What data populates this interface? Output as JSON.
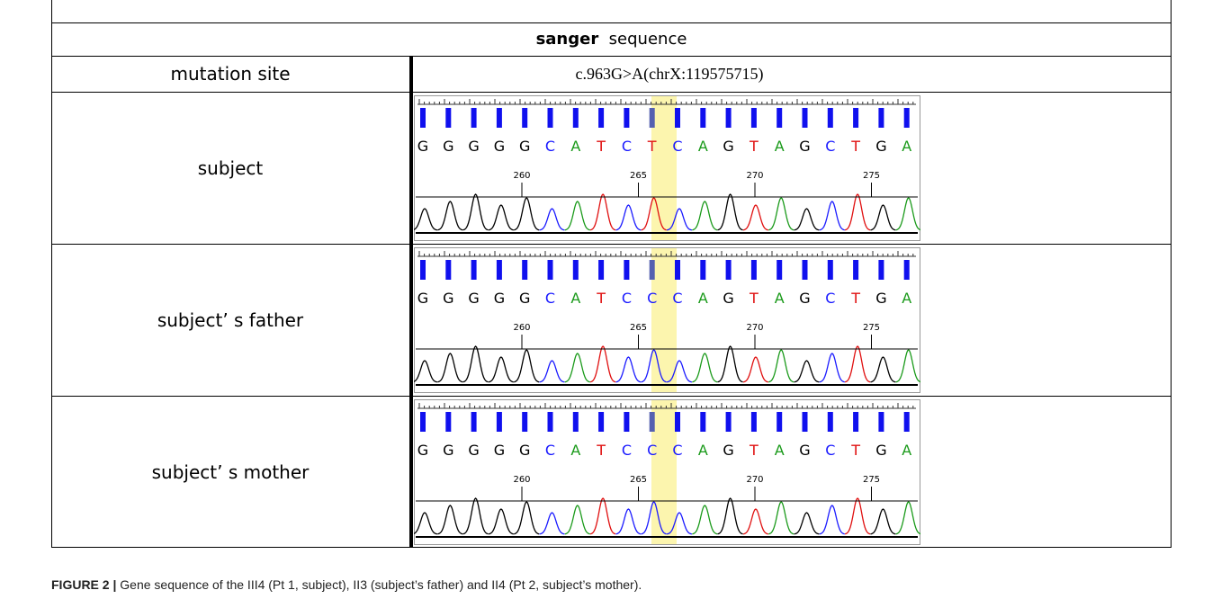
{
  "header": {
    "title_bold": "sanger",
    "title_rest": "sequence"
  },
  "table": {
    "mutation_label": "mutation site",
    "mutation_value": "c.963G>A(chrX:119575715)",
    "rows": [
      {
        "label": "subject",
        "bases": [
          "G",
          "G",
          "G",
          "G",
          "G",
          "C",
          "A",
          "T",
          "C",
          "T",
          "C",
          "A",
          "G",
          "T",
          "A",
          "G",
          "C",
          "T",
          "G",
          "A"
        ],
        "positions": [
          260,
          265,
          270,
          275
        ]
      },
      {
        "label": "subject’ s father",
        "bases": [
          "G",
          "G",
          "G",
          "G",
          "G",
          "C",
          "A",
          "T",
          "C",
          "C",
          "C",
          "A",
          "G",
          "T",
          "A",
          "G",
          "C",
          "T",
          "G",
          "A"
        ],
        "positions": [
          260,
          265,
          270,
          275
        ]
      },
      {
        "label": "subject’ s mother",
        "bases": [
          "G",
          "G",
          "G",
          "G",
          "G",
          "C",
          "A",
          "T",
          "C",
          "C",
          "C",
          "A",
          "G",
          "T",
          "A",
          "G",
          "C",
          "T",
          "G",
          "A"
        ],
        "positions": [
          260,
          265,
          270,
          275
        ]
      }
    ]
  },
  "caption": {
    "label": "FIGURE 2 |",
    "text": " Gene sequence of the III4 (Pt 1, subject), II3 (subject’s father) and II4 (Pt 2, subject’s mother)."
  }
}
